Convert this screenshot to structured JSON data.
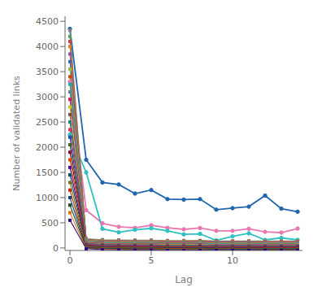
{
  "chart_data": {
    "type": "line",
    "title": "",
    "xlabel": "Lag",
    "ylabel": "Number of validated links",
    "x": [
      0,
      1,
      2,
      3,
      4,
      5,
      6,
      7,
      8,
      9,
      10,
      11,
      12,
      13,
      14
    ],
    "xlim": [
      -0.3,
      14.3
    ],
    "ylim": [
      -50,
      4600
    ],
    "xticks": [
      0,
      5,
      10
    ],
    "yticks": [
      0,
      500,
      1000,
      1500,
      2000,
      2500,
      3000,
      3500,
      4000,
      4500
    ],
    "grid": false,
    "series": [
      {
        "color": "#2166ac",
        "marker": "circle",
        "values": [
          4350,
          1750,
          1300,
          1260,
          1080,
          1150,
          970,
          960,
          970,
          760,
          790,
          820,
          1040,
          780,
          720
        ]
      },
      {
        "color": "#e878b0",
        "marker": "circle",
        "values": [
          3300,
          750,
          490,
          420,
          400,
          450,
          400,
          370,
          395,
          340,
          340,
          380,
          320,
          305,
          385
        ]
      },
      {
        "color": "#30c0c0",
        "marker": "circle",
        "values": [
          2250,
          1500,
          380,
          310,
          360,
          390,
          340,
          270,
          280,
          150,
          230,
          290,
          160,
          200,
          160
        ]
      },
      {
        "color": "#808080",
        "marker": "square",
        "values": [
          4320,
          185,
          165,
          160,
          155,
          155,
          148,
          148,
          148,
          140,
          140,
          140,
          138,
          138,
          138
        ]
      },
      {
        "color": "#5a9e5a",
        "marker": "square",
        "values": [
          4200,
          175,
          155,
          150,
          148,
          148,
          140,
          140,
          145,
          135,
          135,
          135,
          132,
          132,
          132
        ]
      },
      {
        "color": "#d04040",
        "marker": "square",
        "values": [
          4100,
          165,
          148,
          143,
          140,
          140,
          133,
          133,
          138,
          128,
          128,
          128,
          125,
          125,
          125
        ]
      },
      {
        "color": "#e08020",
        "marker": "square",
        "values": [
          4000,
          158,
          140,
          135,
          133,
          133,
          125,
          125,
          130,
          120,
          120,
          120,
          118,
          118,
          118
        ]
      },
      {
        "color": "#9050a0",
        "marker": "square",
        "values": [
          3850,
          150,
          132,
          128,
          125,
          125,
          118,
          118,
          123,
          113,
          113,
          113,
          110,
          110,
          110
        ]
      },
      {
        "color": "#4060b0",
        "marker": "square",
        "values": [
          3700,
          142,
          125,
          120,
          118,
          118,
          110,
          110,
          115,
          105,
          105,
          105,
          103,
          103,
          103
        ]
      },
      {
        "color": "#90c040",
        "marker": "square",
        "values": [
          3550,
          135,
          118,
          113,
          110,
          110,
          103,
          103,
          108,
          98,
          98,
          98,
          95,
          95,
          95
        ]
      },
      {
        "color": "#d04810",
        "marker": "square",
        "values": [
          3400,
          128,
          110,
          105,
          103,
          103,
          95,
          95,
          100,
          90,
          90,
          90,
          88,
          88,
          88
        ]
      },
      {
        "color": "#20b0a0",
        "marker": "square",
        "values": [
          3250,
          120,
          103,
          98,
          95,
          95,
          88,
          88,
          93,
          83,
          83,
          83,
          80,
          80,
          80
        ]
      },
      {
        "color": "#6080a0",
        "marker": "square",
        "values": [
          3100,
          113,
          95,
          90,
          88,
          88,
          80,
          80,
          85,
          75,
          75,
          75,
          73,
          73,
          73
        ]
      },
      {
        "color": "#d01865",
        "marker": "square",
        "values": [
          2950,
          105,
          88,
          83,
          80,
          80,
          73,
          73,
          78,
          68,
          68,
          68,
          65,
          65,
          65
        ]
      },
      {
        "color": "#b8c830",
        "marker": "square",
        "values": [
          2800,
          98,
          80,
          75,
          73,
          73,
          65,
          65,
          70,
          60,
          60,
          60,
          58,
          58,
          58
        ]
      },
      {
        "color": "#805040",
        "marker": "square",
        "values": [
          2650,
          90,
          73,
          68,
          65,
          65,
          58,
          58,
          63,
          53,
          53,
          53,
          50,
          50,
          50
        ]
      },
      {
        "color": "#208080",
        "marker": "square",
        "values": [
          2500,
          83,
          65,
          60,
          58,
          58,
          50,
          50,
          55,
          45,
          45,
          45,
          43,
          43,
          43
        ]
      },
      {
        "color": "#e03070",
        "marker": "square",
        "values": [
          2350,
          75,
          58,
          53,
          50,
          50,
          43,
          43,
          48,
          38,
          38,
          38,
          35,
          35,
          35
        ]
      },
      {
        "color": "#1550b0",
        "marker": "square",
        "values": [
          2200,
          68,
          50,
          45,
          43,
          43,
          35,
          35,
          40,
          30,
          30,
          30,
          28,
          28,
          28
        ]
      },
      {
        "color": "#406020",
        "marker": "square",
        "values": [
          2050,
          60,
          43,
          38,
          35,
          35,
          28,
          28,
          33,
          23,
          23,
          23,
          20,
          20,
          20
        ]
      },
      {
        "color": "#900840",
        "marker": "square",
        "values": [
          1900,
          53,
          35,
          30,
          28,
          28,
          20,
          20,
          25,
          15,
          15,
          15,
          13,
          13,
          13
        ]
      },
      {
        "color": "#e04800",
        "marker": "square",
        "values": [
          1750,
          45,
          28,
          23,
          20,
          20,
          13,
          13,
          18,
          8,
          8,
          8,
          5,
          5,
          5
        ]
      },
      {
        "color": "#500890",
        "marker": "square",
        "values": [
          1600,
          38,
          20,
          15,
          13,
          13,
          5,
          5,
          10,
          0,
          0,
          0,
          -3,
          -3,
          -3
        ]
      },
      {
        "color": "#005060",
        "marker": "square",
        "values": [
          1450,
          30,
          13,
          8,
          5,
          5,
          -3,
          -3,
          2,
          -8,
          -8,
          -8,
          -10,
          -10,
          -10
        ]
      },
      {
        "color": "#807010",
        "marker": "square",
        "values": [
          1300,
          23,
          5,
          0,
          -3,
          -3,
          -10,
          -10,
          -5,
          -15,
          -15,
          -15,
          -18,
          -18,
          -18
        ]
      },
      {
        "color": "#c02800",
        "marker": "square",
        "values": [
          1150,
          15,
          -2,
          -8,
          -10,
          -10,
          -18,
          -18,
          -13,
          -23,
          -23,
          -23,
          -25,
          -25,
          -25
        ]
      },
      {
        "color": "#004880",
        "marker": "square",
        "values": [
          1000,
          8,
          -10,
          -15,
          -18,
          -18,
          -25,
          -25,
          -20,
          -30,
          -30,
          -30,
          -33,
          -33,
          -33
        ]
      },
      {
        "color": "#205020",
        "marker": "square",
        "values": [
          850,
          0,
          -18,
          -23,
          -25,
          -25,
          -33,
          -33,
          -28,
          -38,
          -38,
          -38,
          -40,
          -40,
          -40
        ]
      },
      {
        "color": "#e07010",
        "marker": "square",
        "values": [
          700,
          -8,
          -25,
          -30,
          -33,
          -33,
          -40,
          -40,
          -35,
          -45,
          -45,
          -45,
          -48,
          -48,
          -48
        ]
      },
      {
        "color": "#300880",
        "marker": "square",
        "values": [
          550,
          -15,
          -33,
          -38,
          -40,
          -40,
          -48,
          -48,
          -43,
          -48,
          -48,
          -48,
          -48,
          -48,
          -48
        ]
      }
    ]
  }
}
